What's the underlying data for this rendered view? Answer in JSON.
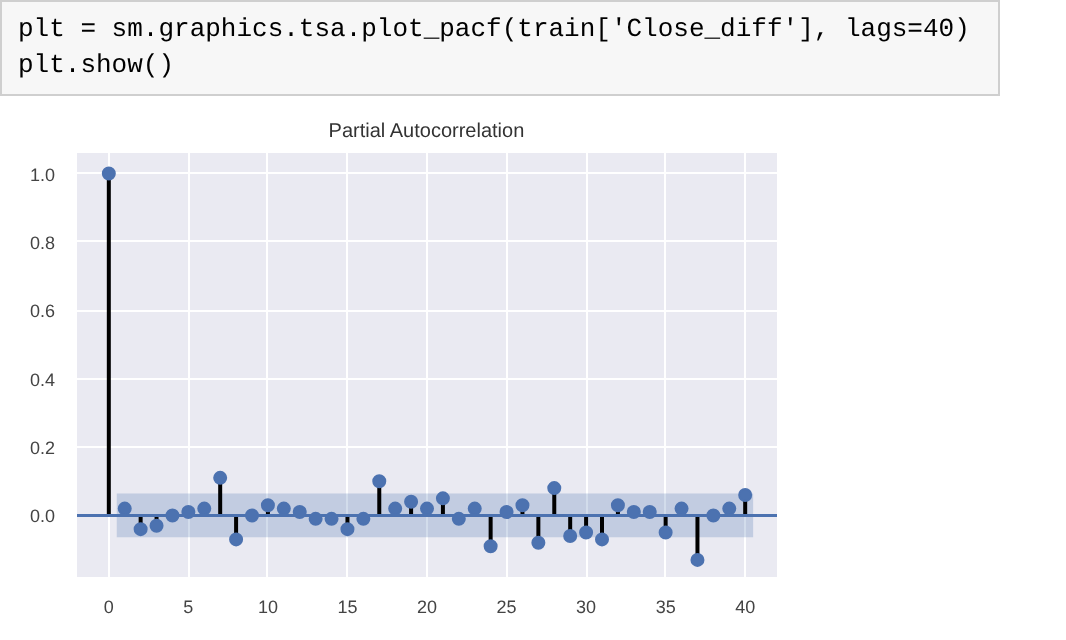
{
  "chart_data": {
    "type": "lollipop",
    "title": "Partial Autocorrelation",
    "annotations": [
      "plt = sm.graphics.tsa.plot_pacf(train['Close_diff'], lags=40)",
      "plt.show()"
    ],
    "x": [
      0,
      1,
      2,
      3,
      4,
      5,
      6,
      7,
      8,
      9,
      10,
      11,
      12,
      13,
      14,
      15,
      16,
      17,
      18,
      19,
      20,
      21,
      22,
      23,
      24,
      25,
      26,
      27,
      28,
      29,
      30,
      31,
      32,
      33,
      34,
      35,
      36,
      37,
      38,
      39,
      40
    ],
    "series": [
      {
        "color": "#4c72b0",
        "values": [
          1.0,
          0.02,
          -0.04,
          -0.03,
          0.0,
          0.01,
          0.02,
          0.11,
          -0.07,
          0.0,
          0.03,
          0.02,
          0.01,
          -0.01,
          -0.01,
          -0.04,
          -0.01,
          0.1,
          0.02,
          0.04,
          0.02,
          0.05,
          -0.01,
          0.02,
          -0.09,
          0.01,
          0.03,
          -0.08,
          0.08,
          -0.06,
          -0.05,
          -0.07,
          0.03,
          0.01,
          0.01,
          -0.05,
          0.02,
          -0.13,
          0.0,
          0.02,
          0.06
        ]
      }
    ],
    "xlim": [
      -2,
      42
    ],
    "ylim": [
      -0.18,
      1.06
    ],
    "xticks": [
      0,
      5,
      10,
      15,
      20,
      25,
      30,
      35,
      40
    ],
    "yticks": [
      {
        "value": 0,
        "label": "0.0"
      },
      {
        "value": 0.2,
        "label": "0.2"
      },
      {
        "value": 0.4,
        "label": "0.4"
      },
      {
        "value": 0.6,
        "label": "0.6"
      },
      {
        "value": 0.8,
        "label": "0.8"
      },
      {
        "value": 1,
        "label": "1.0"
      }
    ],
    "ref_lines": [
      {
        "axis": "y",
        "value": 0,
        "color": "#4c72b0"
      }
    ],
    "bands": [
      {
        "axis": "y",
        "from": -0.064,
        "to": 0.064,
        "color": "#4c72b0"
      }
    ],
    "grid": true,
    "marker": "circle"
  }
}
